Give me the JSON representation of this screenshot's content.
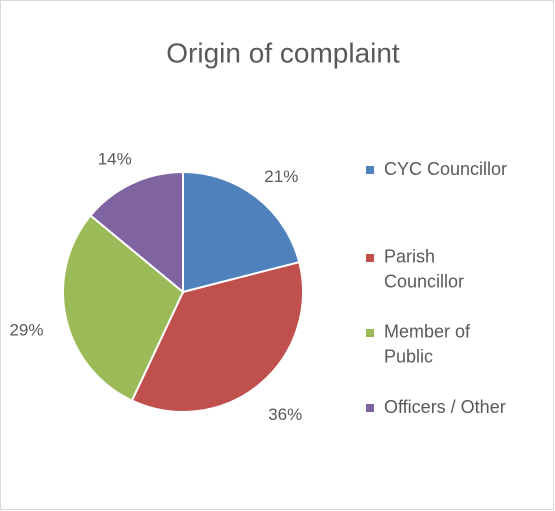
{
  "chart_data": {
    "type": "pie",
    "title": "Origin of complaint",
    "categories": [
      "CYC Councillor",
      "Parish Councillor",
      "Member of Public",
      "Officers / Other"
    ],
    "values": [
      21,
      36,
      29,
      14
    ],
    "value_labels": [
      "21%",
      "36%",
      "29%",
      "14%"
    ],
    "colors": [
      "#4f81bd",
      "#c0504d",
      "#9bbb59",
      "#8064a2"
    ],
    "legend": "right"
  }
}
